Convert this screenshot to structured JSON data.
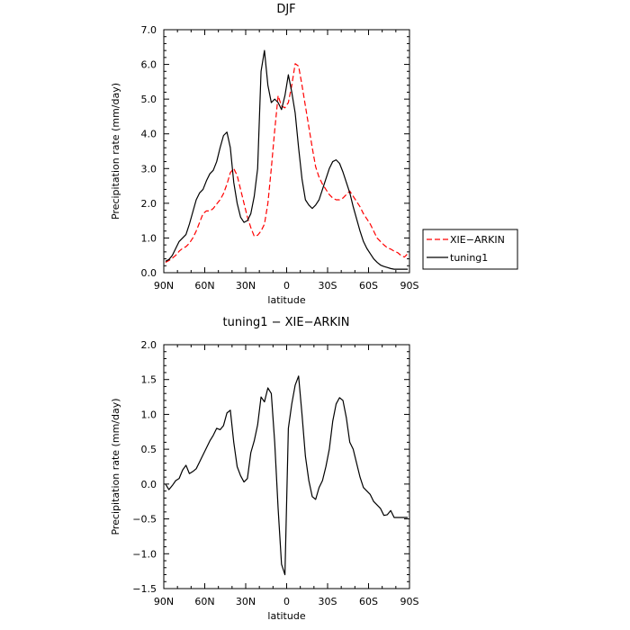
{
  "chart_data": [
    {
      "type": "line",
      "title": "DJF",
      "xlabel": "latitude",
      "ylabel": "Precipitation rate (mm/day)",
      "xlim": [
        -90,
        90
      ],
      "ylim": [
        0,
        7
      ],
      "xticks": [
        -90,
        -60,
        -30,
        0,
        30,
        60,
        90
      ],
      "xtick_labels": [
        "90N",
        "60N",
        "30N",
        "0",
        "30S",
        "60S",
        "90S"
      ],
      "yticks": [
        0,
        1,
        2,
        3,
        4,
        5,
        6,
        7
      ],
      "ytick_labels": [
        "0.0",
        "1.0",
        "2.0",
        "3.0",
        "4.0",
        "5.0",
        "6.0",
        "7.0"
      ],
      "legend_position": "right",
      "series": [
        {
          "name": "XIE−ARKIN",
          "color": "#ff0000",
          "style": "dashed",
          "x": [
            -88.75,
            -86.25,
            -83.75,
            -81.25,
            -78.75,
            -76.25,
            -73.75,
            -71.25,
            -68.75,
            -66.25,
            -63.75,
            -61.25,
            -58.75,
            -56.25,
            -53.75,
            -51.25,
            -48.75,
            -46.25,
            -43.75,
            -41.25,
            -38.75,
            -36.25,
            -33.75,
            -31.25,
            -28.75,
            -26.25,
            -23.75,
            -21.25,
            -18.75,
            -16.25,
            -13.75,
            -11.25,
            -8.75,
            -6.25,
            -3.75,
            -1.25,
            1.25,
            3.75,
            6.25,
            8.75,
            11.25,
            13.75,
            16.25,
            18.75,
            21.25,
            23.75,
            26.25,
            28.75,
            31.25,
            33.75,
            36.25,
            38.75,
            41.25,
            43.75,
            46.25,
            48.75,
            51.25,
            53.75,
            56.25,
            58.75,
            61.25,
            63.75,
            66.25,
            68.75,
            71.25,
            73.75,
            76.25,
            78.75,
            81.25,
            83.75,
            86.25,
            88.75
          ],
          "values": [
            0.3,
            0.35,
            0.42,
            0.5,
            0.62,
            0.7,
            0.75,
            0.85,
            1.0,
            1.2,
            1.45,
            1.7,
            1.78,
            1.78,
            1.85,
            1.98,
            2.1,
            2.28,
            2.55,
            2.88,
            3.0,
            2.8,
            2.4,
            2.0,
            1.6,
            1.3,
            1.05,
            1.08,
            1.2,
            1.4,
            2.0,
            3.0,
            4.1,
            5.1,
            4.8,
            4.75,
            4.9,
            5.4,
            6.02,
            5.95,
            5.4,
            4.8,
            4.2,
            3.6,
            3.05,
            2.75,
            2.55,
            2.4,
            2.25,
            2.15,
            2.1,
            2.1,
            2.15,
            2.25,
            2.35,
            2.2,
            2.05,
            1.9,
            1.7,
            1.55,
            1.4,
            1.2,
            1.0,
            0.9,
            0.8,
            0.72,
            0.68,
            0.62,
            0.58,
            0.5,
            0.45,
            0.55
          ]
        },
        {
          "name": "tuning1",
          "color": "#000000",
          "style": "solid",
          "x": [
            -88.75,
            -86.25,
            -83.75,
            -81.25,
            -78.75,
            -76.25,
            -73.75,
            -71.25,
            -68.75,
            -66.25,
            -63.75,
            -61.25,
            -58.75,
            -56.25,
            -53.75,
            -51.25,
            -48.75,
            -46.25,
            -43.75,
            -41.25,
            -38.75,
            -36.25,
            -33.75,
            -31.25,
            -28.75,
            -26.25,
            -23.75,
            -21.25,
            -18.75,
            -16.25,
            -13.75,
            -11.25,
            -8.75,
            -6.25,
            -3.75,
            -1.25,
            1.25,
            3.75,
            6.25,
            8.75,
            11.25,
            13.75,
            16.25,
            18.75,
            21.25,
            23.75,
            26.25,
            28.75,
            31.25,
            33.75,
            36.25,
            38.75,
            41.25,
            43.75,
            46.25,
            48.75,
            51.25,
            53.75,
            56.25,
            58.75,
            61.25,
            63.75,
            66.25,
            68.75,
            71.25,
            73.75,
            76.25,
            78.75,
            81.25,
            83.75,
            86.25,
            88.75
          ],
          "values": [
            0.33,
            0.38,
            0.5,
            0.7,
            0.9,
            1.0,
            1.1,
            1.4,
            1.75,
            2.1,
            2.3,
            2.4,
            2.65,
            2.85,
            2.95,
            3.2,
            3.6,
            3.95,
            4.05,
            3.6,
            2.6,
            2.0,
            1.6,
            1.45,
            1.5,
            1.7,
            2.2,
            3.0,
            5.8,
            6.4,
            5.4,
            4.9,
            5.0,
            4.9,
            4.7,
            5.1,
            5.7,
            5.2,
            4.6,
            3.6,
            2.7,
            2.1,
            1.95,
            1.85,
            1.95,
            2.1,
            2.4,
            2.7,
            3.0,
            3.2,
            3.25,
            3.15,
            2.9,
            2.6,
            2.3,
            1.9,
            1.55,
            1.2,
            0.9,
            0.7,
            0.55,
            0.4,
            0.3,
            0.22,
            0.18,
            0.15,
            0.12,
            0.1,
            0.1,
            0.1,
            0.1,
            0.1
          ]
        }
      ]
    },
    {
      "type": "line",
      "title": "tuning1 − XIE−ARKIN",
      "xlabel": "latitude",
      "ylabel": "Precipitation rate (mm/day)",
      "xlim": [
        -90,
        90
      ],
      "ylim": [
        -1.5,
        2.0
      ],
      "xticks": [
        -90,
        -60,
        -30,
        0,
        30,
        60,
        90
      ],
      "xtick_labels": [
        "90N",
        "60N",
        "30N",
        "0",
        "30S",
        "60S",
        "90S"
      ],
      "yticks": [
        -1.5,
        -1.0,
        -0.5,
        0.0,
        0.5,
        1.0,
        1.5,
        2.0
      ],
      "ytick_labels": [
        "−1.5",
        "−1.0",
        "−0.5",
        "0.0",
        "0.5",
        "1.0",
        "1.5",
        "2.0"
      ],
      "series": [
        {
          "color": "#000000",
          "style": "solid",
          "x": [
            -88.75,
            -86.25,
            -83.75,
            -81.25,
            -78.75,
            -76.25,
            -73.75,
            -71.25,
            -68.75,
            -66.25,
            -63.75,
            -61.25,
            -58.75,
            -56.25,
            -53.75,
            -51.25,
            -48.75,
            -46.25,
            -43.75,
            -41.25,
            -38.75,
            -36.25,
            -33.75,
            -31.25,
            -28.75,
            -26.25,
            -23.75,
            -21.25,
            -18.75,
            -16.25,
            -13.75,
            -11.25,
            -8.75,
            -6.25,
            -3.75,
            -1.25,
            1.25,
            3.75,
            6.25,
            8.75,
            11.25,
            13.75,
            16.25,
            18.75,
            21.25,
            23.75,
            26.25,
            28.75,
            31.25,
            33.75,
            36.25,
            38.75,
            41.25,
            43.75,
            46.25,
            48.75,
            51.25,
            53.75,
            56.25,
            58.75,
            61.25,
            63.75,
            66.25,
            68.75,
            71.25,
            73.75,
            76.25,
            78.75,
            81.25,
            83.75,
            86.25,
            88.75
          ],
          "values": [
            0.0,
            -0.08,
            -0.02,
            0.05,
            0.08,
            0.2,
            0.27,
            0.15,
            0.18,
            0.22,
            0.32,
            0.42,
            0.52,
            0.62,
            0.7,
            0.8,
            0.78,
            0.84,
            1.02,
            1.06,
            0.6,
            0.25,
            0.12,
            0.03,
            0.08,
            0.45,
            0.62,
            0.85,
            1.25,
            1.18,
            1.38,
            1.3,
            0.6,
            -0.35,
            -1.15,
            -1.3,
            0.8,
            1.15,
            1.42,
            1.55,
            1.0,
            0.4,
            0.05,
            -0.18,
            -0.22,
            -0.05,
            0.05,
            0.25,
            0.5,
            0.9,
            1.15,
            1.24,
            1.2,
            0.95,
            0.6,
            0.5,
            0.3,
            0.1,
            -0.05,
            -0.1,
            -0.15,
            -0.25,
            -0.3,
            -0.35,
            -0.45,
            -0.44,
            -0.38,
            -0.48,
            -0.48,
            -0.48,
            -0.48,
            -0.48
          ]
        }
      ]
    }
  ]
}
